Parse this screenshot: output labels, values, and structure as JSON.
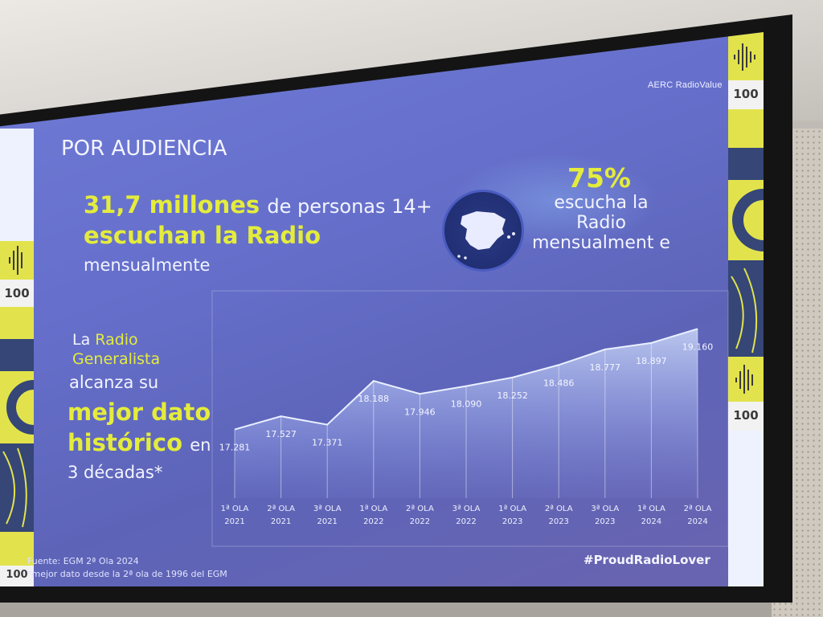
{
  "header": {
    "brand_logo": "AERC RadioValue"
  },
  "slide": {
    "title": "POR AUDIENCIA",
    "headline_number": "31,7 millones",
    "headline_rest": "de personas 14+",
    "headline_line2": "escuchan la Radio",
    "headline_line3": "mensualmente",
    "share_percent": "75%",
    "share_text": "escucha la Radio mensualment e",
    "left_block": {
      "line1_pre": "La",
      "line1_hl": "Radio",
      "line2_hl": "Generalista",
      "line3": "alcanza su",
      "line4_hl": "mejor dato",
      "line5_hl": "histórico",
      "line5_post": "en",
      "line6": "3 décadas*"
    },
    "source": "Fuente: EGM 2ª Ola 2024",
    "footnote": "*mejor dato desde la 2ª ola de 1996 del EGM",
    "hashtag": "#ProudRadioLover",
    "badge_text": "100"
  },
  "colors": {
    "accent": "#e4ec3c",
    "slide_bg": "#6670cc",
    "deco_dark": "#2d3a6b"
  },
  "icons": [
    "spain-map-icon",
    "sound-wave-icon"
  ],
  "chart_data": {
    "type": "area",
    "categories": [
      [
        "1ª OLA",
        "2021"
      ],
      [
        "2ª OLA",
        "2021"
      ],
      [
        "3ª OLA",
        "2021"
      ],
      [
        "1ª OLA",
        "2022"
      ],
      [
        "2ª OLA",
        "2022"
      ],
      [
        "3ª OLA",
        "2022"
      ],
      [
        "1ª OLA",
        "2023"
      ],
      [
        "2ª OLA",
        "2023"
      ],
      [
        "3ª OLA",
        "2023"
      ],
      [
        "1ª OLA",
        "2024"
      ],
      [
        "2ª OLA",
        "2024"
      ]
    ],
    "values": [
      17.281,
      17.527,
      17.371,
      18.188,
      17.946,
      18.09,
      18.252,
      18.486,
      18.777,
      18.897,
      19.16
    ],
    "value_labels": [
      "17.281",
      "17.527",
      "17.371",
      "18.188",
      "17.946",
      "18.090",
      "18.252",
      "18.486",
      "18.777",
      "18.897",
      "19.160"
    ],
    "ylim": [
      16.0,
      19.3
    ],
    "grid": true
  }
}
